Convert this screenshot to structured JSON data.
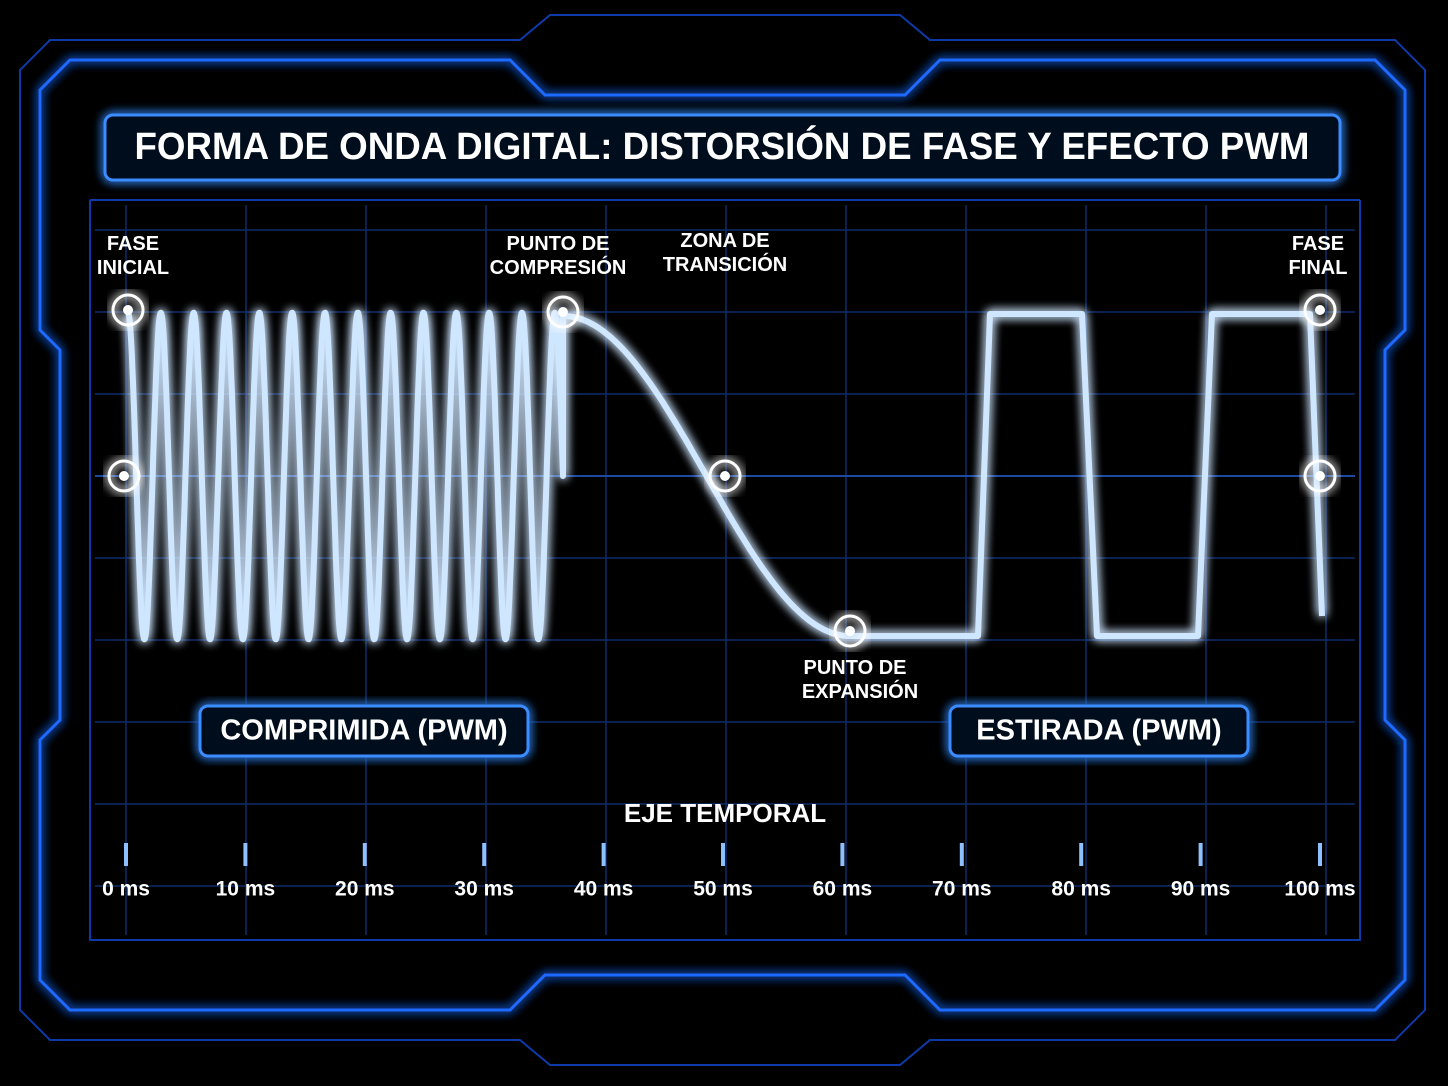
{
  "header": {
    "title": "FORMA DE ONDA DIGITAL: DISTORSIÓN DE FASE Y EFECTO PWM"
  },
  "annotations": [
    {
      "lines": [
        "FASE",
        "INICIAL"
      ]
    },
    {
      "lines": [
        "PUNTO DE",
        "COMPRESIÓN"
      ]
    },
    {
      "lines": [
        "ZONA DE",
        "TRANSICIÓN"
      ]
    },
    {
      "lines": [
        "PUNTO DE",
        "EXPANSIÓN"
      ]
    },
    {
      "lines": [
        "FASE",
        "FINAL"
      ]
    }
  ],
  "regions": [
    "COMPRIMIDA (PWM)",
    "ESTIRADA (PWM)"
  ],
  "axis": {
    "title": "EJE TEMPORAL",
    "xlim": [
      0,
      100
    ],
    "ticks": [
      {
        "value": 0,
        "label": "0 ms"
      },
      {
        "value": 10,
        "label": "10 ms"
      },
      {
        "value": 20,
        "label": "20 ms"
      },
      {
        "value": 30,
        "label": "30 ms"
      },
      {
        "value": 40,
        "label": "40 ms"
      },
      {
        "value": 50,
        "label": "50 ms"
      },
      {
        "value": 60,
        "label": "60 ms"
      },
      {
        "value": 70,
        "label": "70 ms"
      },
      {
        "value": 80,
        "label": "80 ms"
      },
      {
        "value": 90,
        "label": "90 ms"
      },
      {
        "value": 100,
        "label": "100 ms"
      }
    ]
  }
}
